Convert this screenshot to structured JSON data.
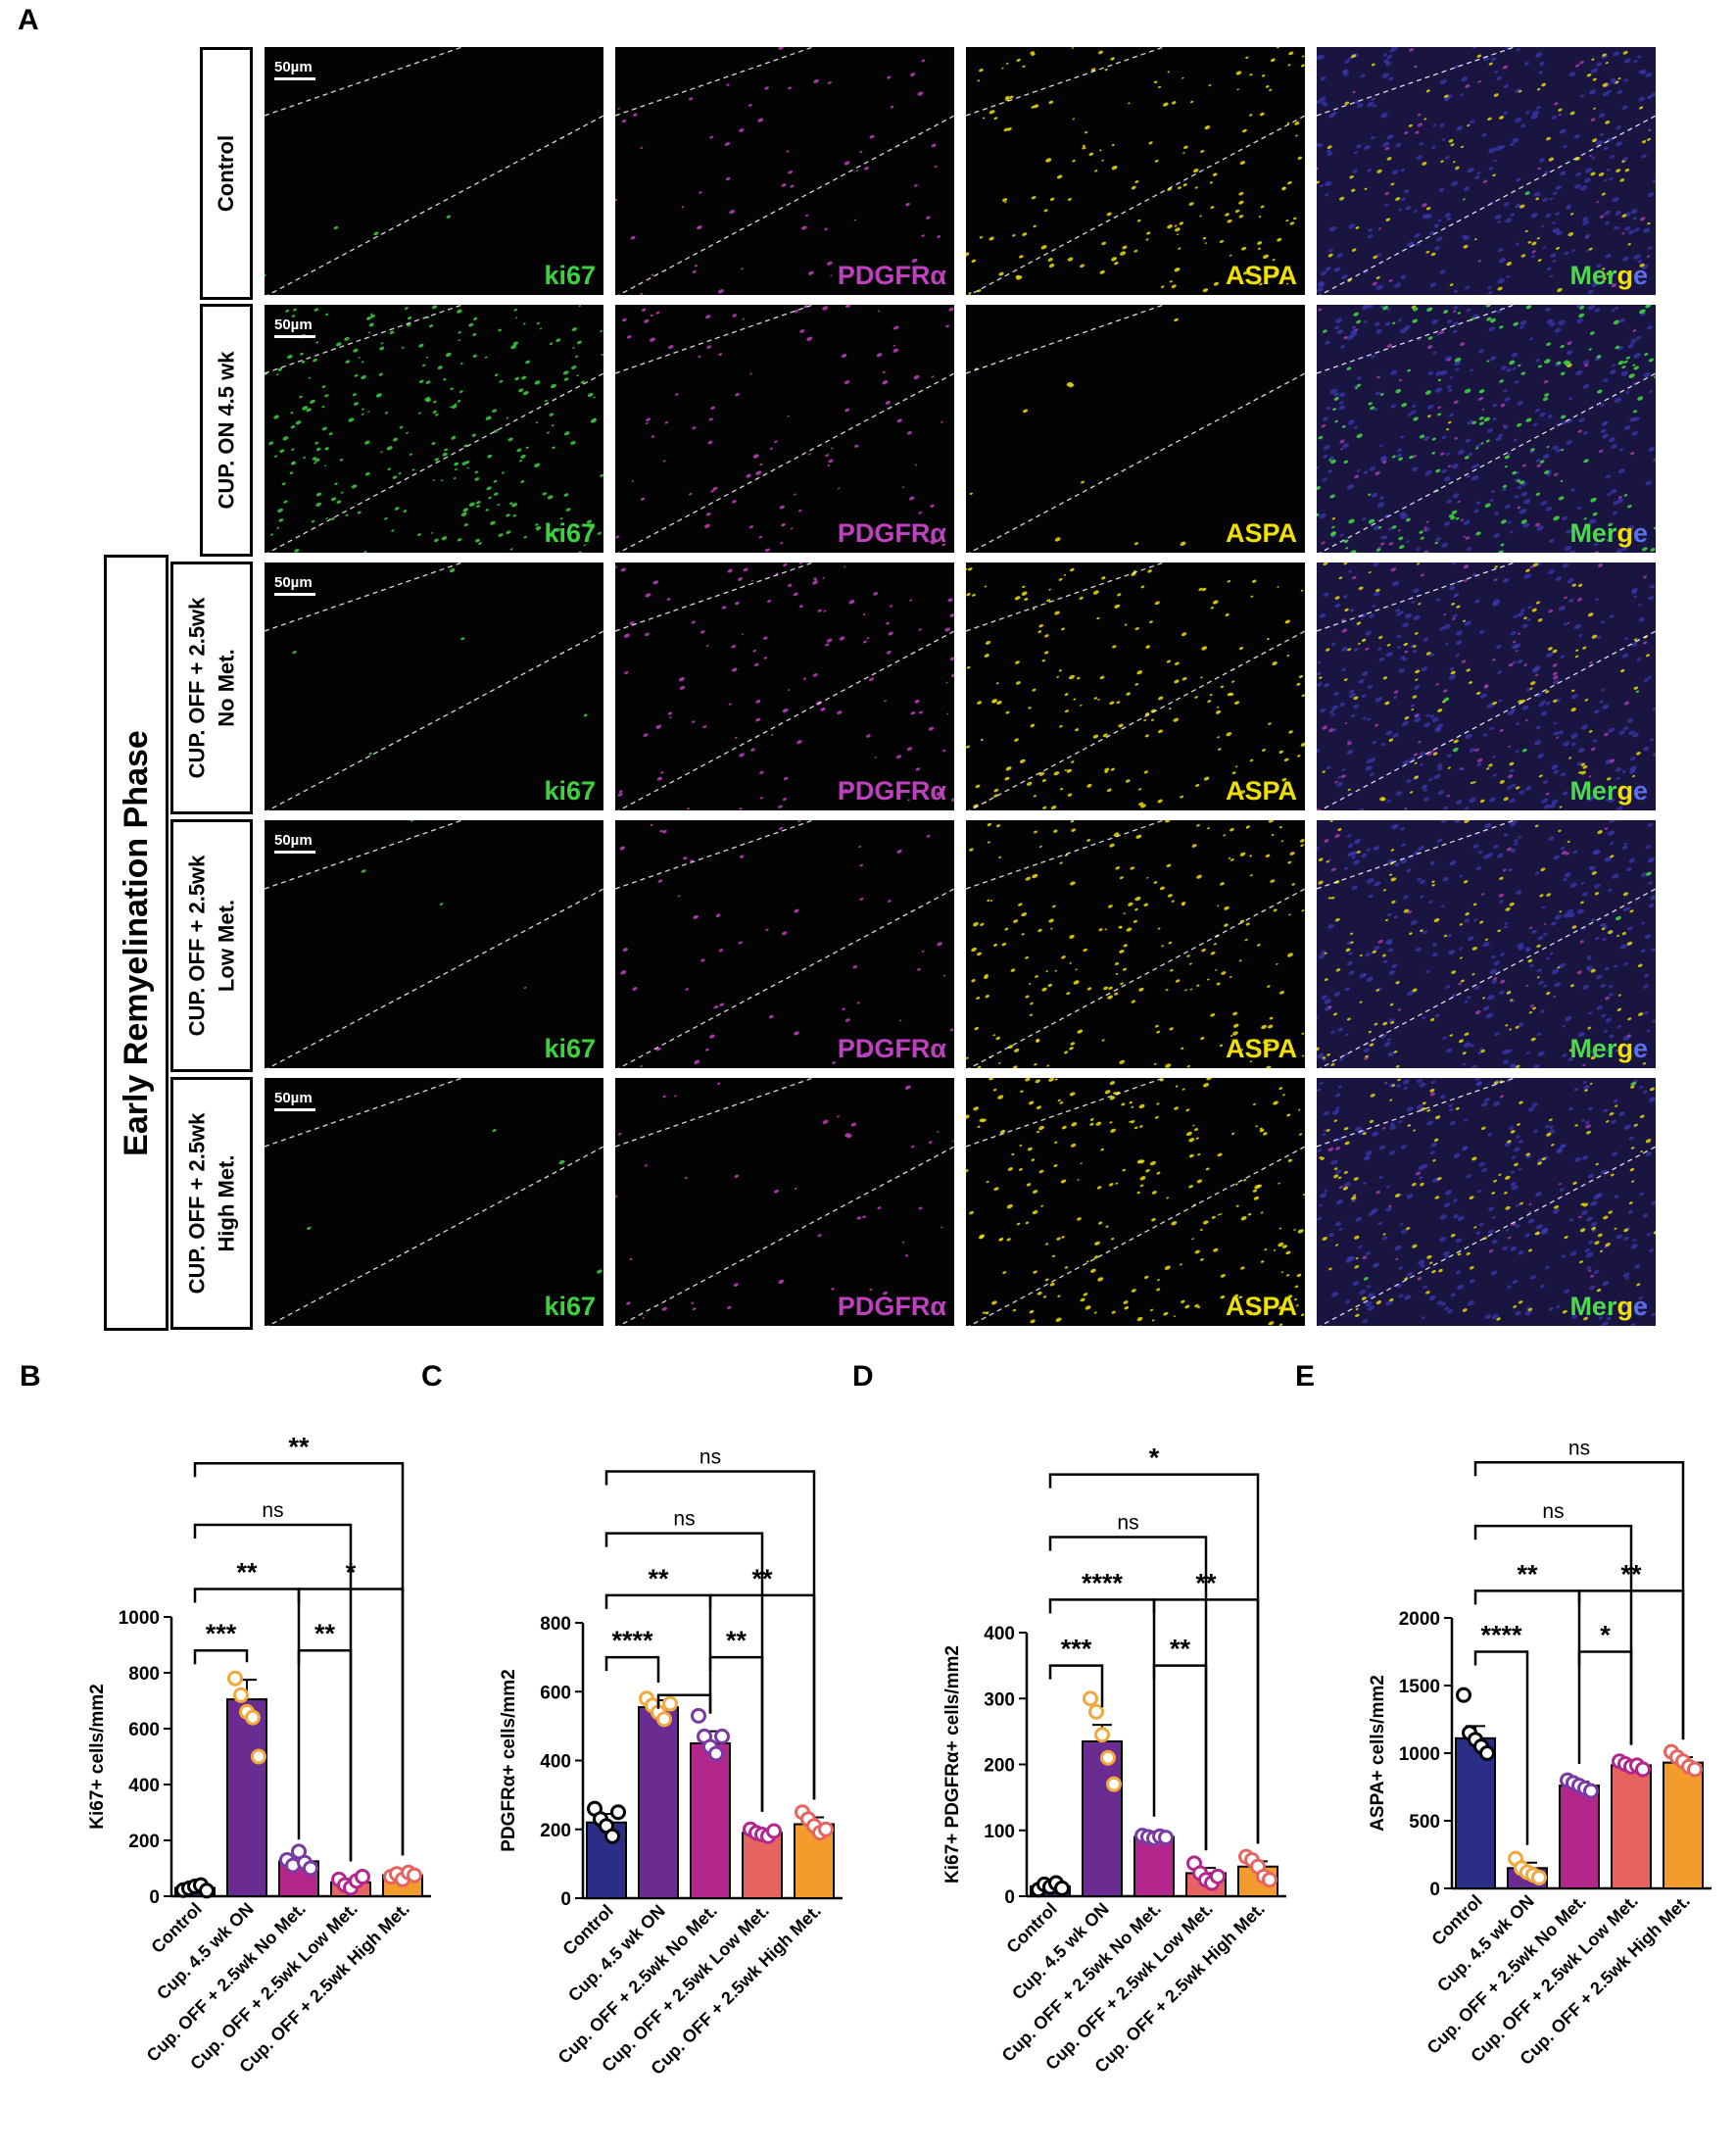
{
  "figure": {
    "panels": {
      "A": "A",
      "B": "B",
      "C": "C",
      "D": "D",
      "E": "E"
    },
    "rows": [
      "Control",
      "CUP. ON 4.5 wk",
      "CUP. OFF + 2.5wk\nNo Met.",
      "CUP. OFF + 2.5wk\nLow Met.",
      "CUP. OFF + 2.5wk\nHigh Met."
    ],
    "phase_label": "Early Remyelination Phase",
    "scale_bar": "50µm",
    "stains": {
      "ki67": "ki67",
      "pdgfra": "PDGFRα",
      "aspa": "ASPA",
      "merge_parts": [
        "Me",
        "r",
        "g",
        "e"
      ]
    },
    "colors": {
      "ki67": "#3fcf3f",
      "pdgfra": "#c040c0",
      "aspa": "#f0e000",
      "nuclei": "#3a3ab8"
    }
  },
  "chart_data": [
    {
      "panel": "B",
      "type": "bar",
      "ylabel": "Ki67+ cells/mm2",
      "ylim": [
        0,
        1000
      ],
      "yticks": [
        0,
        200,
        400,
        600,
        800,
        1000
      ],
      "categories": [
        "Control",
        "Cup. 4.5 wk ON",
        "Cup. OFF + 2.5wk No Met.",
        "Cup. OFF + 2.5wk Low Met.",
        "Cup. OFF + 2.5wk High Met."
      ],
      "values": [
        30,
        705,
        125,
        50,
        75
      ],
      "errors": [
        8,
        70,
        15,
        12,
        8
      ],
      "points": [
        [
          22,
          28,
          35,
          40,
          20
        ],
        [
          780,
          720,
          660,
          640,
          500
        ],
        [
          130,
          110,
          160,
          120,
          100
        ],
        [
          60,
          40,
          30,
          55,
          70
        ],
        [
          70,
          80,
          60,
          85,
          75
        ]
      ],
      "colors": [
        "#2b2e86",
        "#6a2c91",
        "#b3268c",
        "#e6645f",
        "#f49b2d"
      ],
      "point_colors": [
        "#000000",
        "#f2a93b",
        "#7a3aa3",
        "#b3268c",
        "#e6645f"
      ],
      "brackets": [
        {
          "from": 0,
          "to": 1,
          "label": "***",
          "y": 880
        },
        {
          "from": 2,
          "to": 3,
          "label": "**",
          "y": 880
        },
        {
          "from": 0,
          "to": 2,
          "label": "**",
          "y": 1100
        },
        {
          "from": 2,
          "to": 4,
          "label": "*",
          "y": 1100
        },
        {
          "from": 0,
          "to": 3,
          "label": "ns",
          "y": 1330
        },
        {
          "from": 0,
          "to": 4,
          "label": "**",
          "y": 1550
        }
      ]
    },
    {
      "panel": "C",
      "type": "bar",
      "ylabel": "PDGFRα+ cells/mm2",
      "ylim": [
        0,
        800
      ],
      "yticks": [
        0,
        200,
        400,
        600,
        800
      ],
      "categories": [
        "Control",
        "Cup. 4.5 wk ON",
        "Cup. OFF + 2.5wk No Met.",
        "Cup. OFF + 2.5wk Low Met.",
        "Cup. OFF + 2.5wk High Met."
      ],
      "values": [
        220,
        555,
        450,
        190,
        215
      ],
      "errors": [
        25,
        20,
        35,
        10,
        20
      ],
      "points": [
        [
          260,
          230,
          210,
          180,
          250
        ],
        [
          580,
          560,
          540,
          520,
          565
        ],
        [
          530,
          470,
          440,
          420,
          470
        ],
        [
          200,
          190,
          185,
          180,
          195
        ],
        [
          250,
          230,
          210,
          190,
          200
        ]
      ],
      "colors": [
        "#2b2e86",
        "#6a2c91",
        "#b3268c",
        "#e6645f",
        "#f49b2d"
      ],
      "point_colors": [
        "#000000",
        "#f2a93b",
        "#7a3aa3",
        "#b3268c",
        "#e6645f"
      ],
      "brackets": [
        {
          "from": 0,
          "to": 1,
          "label": "****",
          "y": 700
        },
        {
          "from": 1,
          "to": 2,
          "label": "",
          "y": 590
        },
        {
          "from": 2,
          "to": 3,
          "label": "**",
          "y": 700
        },
        {
          "from": 0,
          "to": 2,
          "label": "**",
          "y": 880
        },
        {
          "from": 2,
          "to": 4,
          "label": "**",
          "y": 880
        },
        {
          "from": 0,
          "to": 3,
          "label": "ns",
          "y": 1060
        },
        {
          "from": 0,
          "to": 4,
          "label": "ns",
          "y": 1240
        }
      ]
    },
    {
      "panel": "D",
      "type": "bar",
      "ylabel": "Ki67+ PDGFRα+ cells/mm2",
      "ylim": [
        0,
        400
      ],
      "yticks": [
        0,
        100,
        200,
        300,
        400
      ],
      "categories": [
        "Control",
        "Cup. 4.5 wk ON",
        "Cup. OFF + 2.5wk No Met.",
        "Cup. OFF + 2.5wk Low Met.",
        "Cup. OFF + 2.5wk High Met."
      ],
      "values": [
        15,
        235,
        90,
        35,
        45
      ],
      "errors": [
        4,
        25,
        4,
        8,
        8
      ],
      "points": [
        [
          10,
          18,
          14,
          20,
          12
        ],
        [
          300,
          280,
          245,
          210,
          170
        ],
        [
          92,
          90,
          88,
          91,
          89
        ],
        [
          50,
          35,
          25,
          20,
          30
        ],
        [
          60,
          55,
          45,
          30,
          25
        ]
      ],
      "colors": [
        "#2b2e86",
        "#6a2c91",
        "#b3268c",
        "#e6645f",
        "#f49b2d"
      ],
      "point_colors": [
        "#000000",
        "#f2a93b",
        "#7a3aa3",
        "#b3268c",
        "#e6645f"
      ],
      "brackets": [
        {
          "from": 0,
          "to": 1,
          "label": "***",
          "y": 350
        },
        {
          "from": 2,
          "to": 3,
          "label": "**",
          "y": 350
        },
        {
          "from": 0,
          "to": 2,
          "label": "****",
          "y": 450
        },
        {
          "from": 2,
          "to": 4,
          "label": "**",
          "y": 450
        },
        {
          "from": 0,
          "to": 3,
          "label": "ns",
          "y": 545
        },
        {
          "from": 0,
          "to": 4,
          "label": "*",
          "y": 640
        }
      ]
    },
    {
      "panel": "E",
      "type": "bar",
      "ylabel": "ASPA+ cells/mm2",
      "ylim": [
        0,
        2000
      ],
      "yticks": [
        0,
        500,
        1000,
        1500,
        2000
      ],
      "categories": [
        "Control",
        "Cup. 4.5 wk ON",
        "Cup. OFF + 2.5wk No Met.",
        "Cup. OFF + 2.5wk Low Met.",
        "Cup. OFF + 2.5wk High Met."
      ],
      "values": [
        1110,
        150,
        760,
        910,
        930
      ],
      "errors": [
        90,
        40,
        30,
        20,
        40
      ],
      "points": [
        [
          1430,
          1150,
          1100,
          1050,
          1000
        ],
        [
          220,
          150,
          120,
          100,
          80
        ],
        [
          800,
          780,
          760,
          740,
          720
        ],
        [
          940,
          920,
          900,
          910,
          880
        ],
        [
          1010,
          970,
          940,
          900,
          880
        ]
      ],
      "colors": [
        "#2b2e86",
        "#6a2c91",
        "#b3268c",
        "#e6645f",
        "#f49b2d"
      ],
      "point_colors": [
        "#000000",
        "#f2a93b",
        "#7a3aa3",
        "#b3268c",
        "#e6645f"
      ],
      "brackets": [
        {
          "from": 0,
          "to": 1,
          "label": "****",
          "y": 1750
        },
        {
          "from": 2,
          "to": 3,
          "label": "*",
          "y": 1750
        },
        {
          "from": 0,
          "to": 2,
          "label": "**",
          "y": 2200
        },
        {
          "from": 2,
          "to": 4,
          "label": "**",
          "y": 2200
        },
        {
          "from": 0,
          "to": 3,
          "label": "ns",
          "y": 2680
        },
        {
          "from": 0,
          "to": 4,
          "label": "ns",
          "y": 3150
        }
      ]
    }
  ]
}
